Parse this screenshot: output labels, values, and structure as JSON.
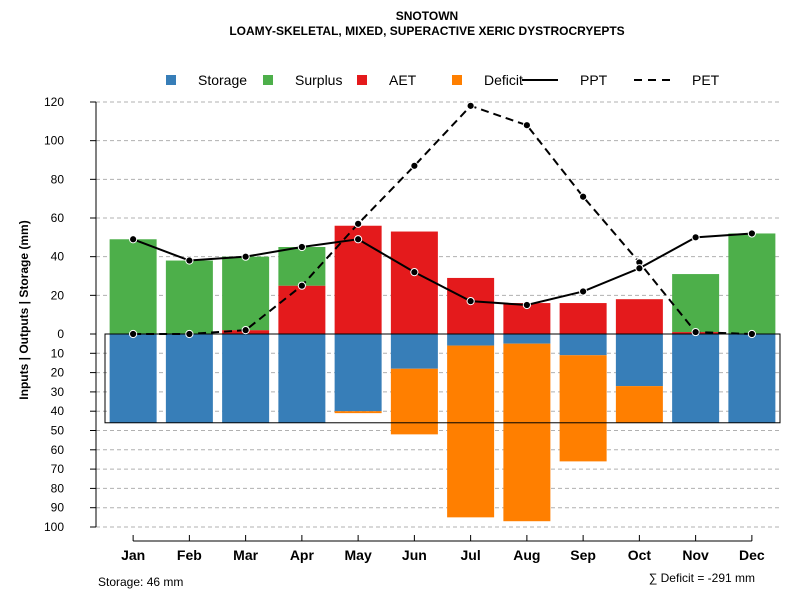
{
  "chart_data": {
    "type": "bar",
    "title": "SNOTOWN",
    "subtitle": "LOAMY-SKELETAL, MIXED, SUPERACTIVE XERIC DYSTROCRYEPTS",
    "ylabel": "Inputs | Outputs | Storage    (mm)",
    "categories": [
      "Jan",
      "Feb",
      "Mar",
      "Apr",
      "May",
      "Jun",
      "Jul",
      "Aug",
      "Sep",
      "Oct",
      "Nov",
      "Dec"
    ],
    "ylim_top": [
      0,
      120
    ],
    "ylim_bottom": [
      0,
      100
    ],
    "yticks_top": [
      120,
      100,
      80,
      60,
      40,
      20,
      0
    ],
    "yticks_bottom": [
      10,
      20,
      30,
      40,
      50,
      60,
      70,
      80,
      90,
      100
    ],
    "legend": {
      "position": "top",
      "items": [
        {
          "label": "Storage",
          "kind": "square",
          "color": "#377eb8"
        },
        {
          "label": "Surplus",
          "kind": "square",
          "color": "#4daf4a"
        },
        {
          "label": "AET",
          "kind": "square",
          "color": "#e41a1c"
        },
        {
          "label": "Deficit",
          "kind": "square",
          "color": "#ff7f00"
        },
        {
          "label": "PPT",
          "kind": "solid-line",
          "color": "#000000"
        },
        {
          "label": "PET",
          "kind": "dashed-line",
          "color": "#000000"
        }
      ]
    },
    "series": [
      {
        "name": "AET",
        "color": "#e41a1c",
        "values": [
          0,
          0,
          2,
          25,
          56,
          53,
          29,
          16,
          16,
          18,
          1,
          0
        ]
      },
      {
        "name": "Surplus",
        "color": "#4daf4a",
        "values": [
          49,
          38,
          38,
          20,
          0,
          0,
          0,
          0,
          0,
          0,
          30,
          52
        ]
      },
      {
        "name": "Storage",
        "color": "#377eb8",
        "values": [
          46,
          46,
          46,
          46,
          40,
          18,
          6,
          5,
          11,
          27,
          46,
          46
        ]
      },
      {
        "name": "Deficit",
        "color": "#ff7f00",
        "values": [
          0,
          0,
          0,
          0,
          1,
          34,
          89,
          92,
          55,
          19,
          0,
          0
        ]
      },
      {
        "name": "PPT",
        "color": "#000000",
        "style": "solid",
        "values": [
          49,
          38,
          40,
          45,
          49,
          32,
          17,
          15,
          22,
          34,
          50,
          52
        ]
      },
      {
        "name": "PET",
        "color": "#000000",
        "style": "dashed",
        "values": [
          0,
          0,
          2,
          25,
          57,
          87,
          118,
          108,
          71,
          37,
          1,
          0
        ]
      }
    ],
    "storage_capacity": 46,
    "grid": true
  },
  "footer": {
    "storage_note": "Storage: 46 mm",
    "deficit_sum": "∑ Deficit = -291 mm"
  }
}
